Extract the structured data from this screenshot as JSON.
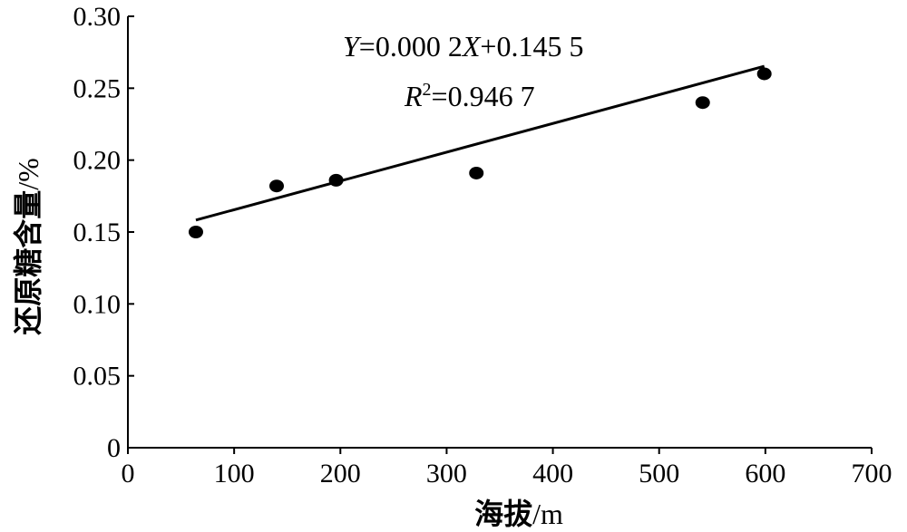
{
  "chart_data": {
    "type": "scatter",
    "xlabel": "海拔",
    "xunit": "/m",
    "ylabel": "还原糖含量",
    "yunit": "/%",
    "xlim": [
      0,
      700
    ],
    "ylim": [
      0,
      0.3
    ],
    "xticks": [
      "0",
      "100",
      "200",
      "300",
      "400",
      "500",
      "600",
      "700"
    ],
    "yticks": [
      "0",
      "0.05",
      "0.10",
      "0.15",
      "0.20",
      "0.25",
      "0.30"
    ],
    "grid": false,
    "legend": "none",
    "points": [
      {
        "x": 64,
        "y": 0.15
      },
      {
        "x": 140,
        "y": 0.182
      },
      {
        "x": 196,
        "y": 0.186
      },
      {
        "x": 328,
        "y": 0.191
      },
      {
        "x": 541,
        "y": 0.24
      },
      {
        "x": 599,
        "y": 0.26
      }
    ],
    "trendline": {
      "x": [
        64,
        599
      ],
      "slope": 0.0002,
      "intercept": 0.1455
    },
    "equation": {
      "line1": {
        "y_var": "Y",
        "mid": "=0.000 2",
        "x_var": "X",
        "end": "+0.145 5"
      },
      "line2": {
        "r_var": "R",
        "sup": "2",
        "end": "=0.946 7"
      }
    },
    "colors": {
      "points": "#000000",
      "line": "#000000",
      "axis": "#000000"
    }
  }
}
